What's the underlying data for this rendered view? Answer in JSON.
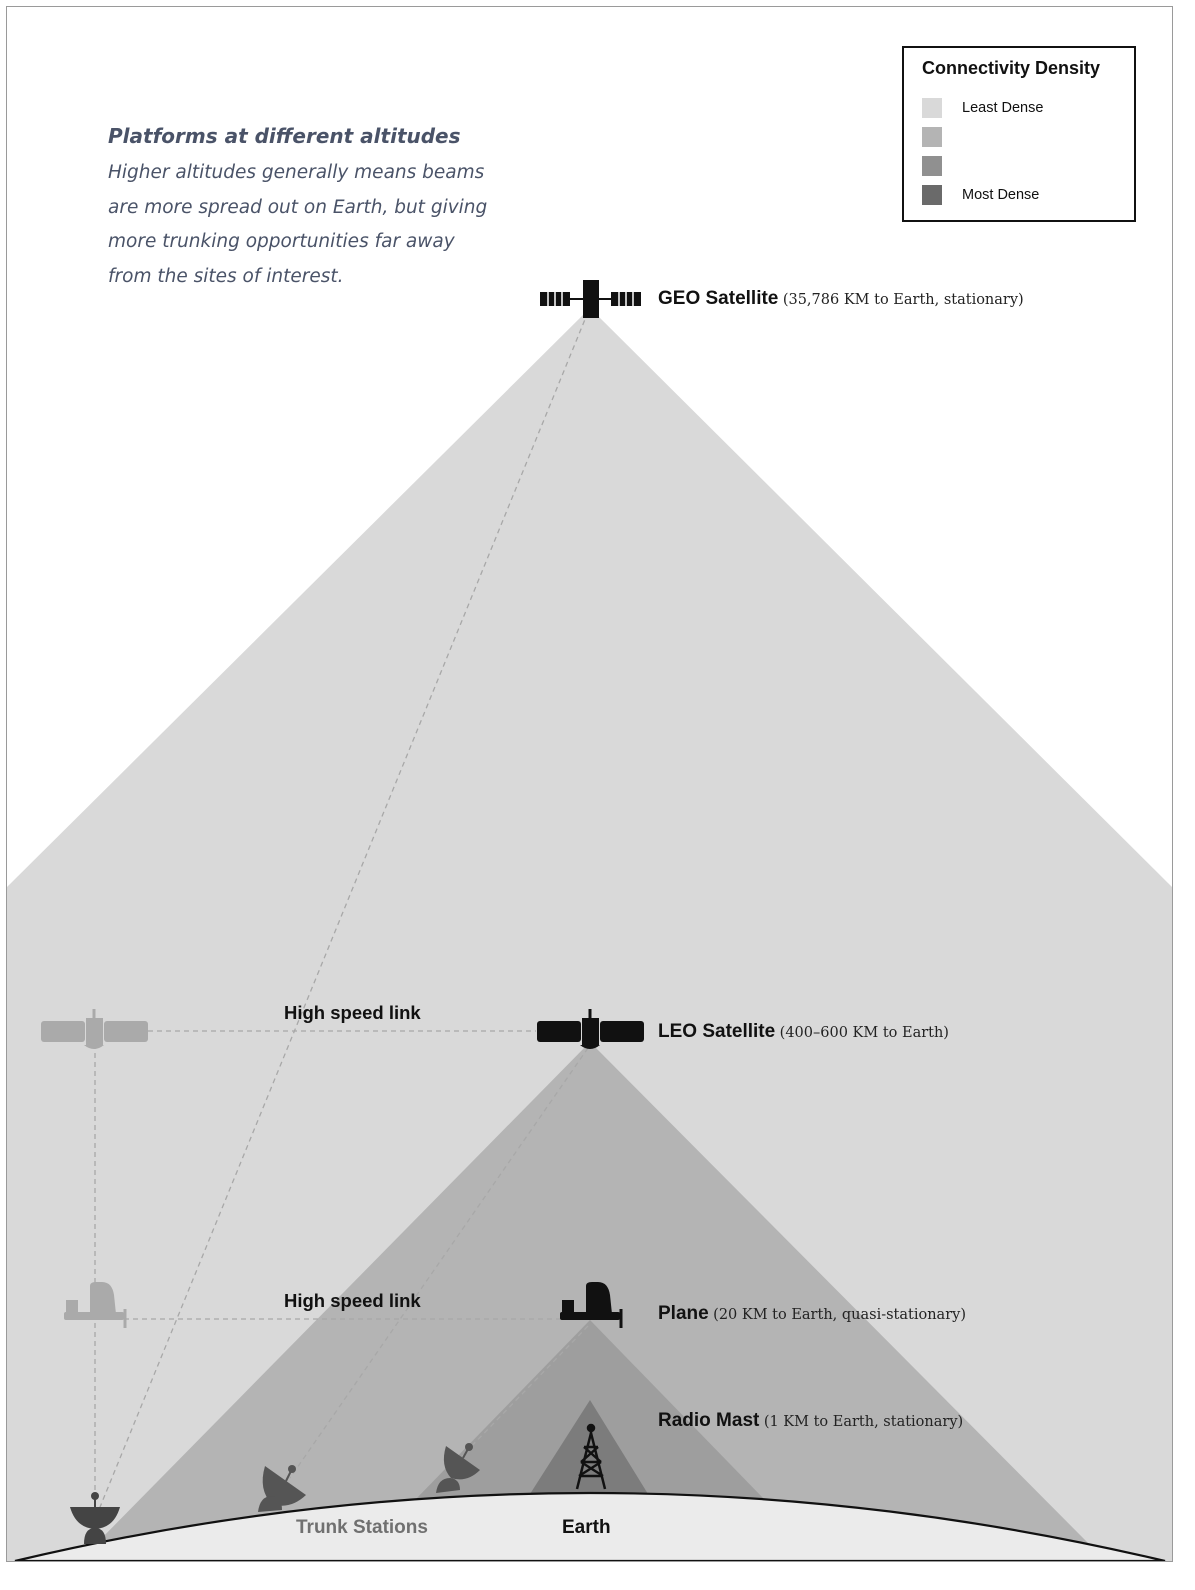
{
  "intro": {
    "heading": "Platforms at different altitudes",
    "body": "Higher altitudes generally means beams are more spread out on Earth, but giving more trunking opportunities far away from the sites of interest."
  },
  "legend": {
    "title": "Connectivity Density",
    "items": [
      {
        "label": "Least Dense",
        "color": "#d9d9d9"
      },
      {
        "label": "",
        "color": "#b4b4b4"
      },
      {
        "label": "",
        "color": "#909090"
      },
      {
        "label": "Most Dense",
        "color": "#6a6a6a"
      }
    ]
  },
  "platforms": {
    "geo": {
      "name": "GEO Satellite",
      "detail": "(35,786 KM to Earth, stationary)"
    },
    "leo": {
      "name": "LEO Satellite",
      "detail": "(400–600 KM to Earth)"
    },
    "plane": {
      "name": "Plane",
      "detail": "(20 KM to Earth, quasi-stationary)"
    },
    "mast": {
      "name": "Radio Mast",
      "detail": "(1 KM to Earth, stationary)"
    }
  },
  "links": {
    "satellite_link": "High speed link",
    "plane_link": "High speed link"
  },
  "ground": {
    "trunk_stations": "Trunk Stations",
    "earth": "Earth"
  },
  "colors": {
    "geo_beam": "#d9d9d9",
    "leo_beam": "#b4b4b4",
    "plane_beam": "#9e9e9e",
    "mast_beam": "#7c7c7c",
    "earth": "#ebebeb",
    "icon_active": "#111111",
    "icon_ghost": "#aaaaaa",
    "text_intro": "#4a5368"
  }
}
